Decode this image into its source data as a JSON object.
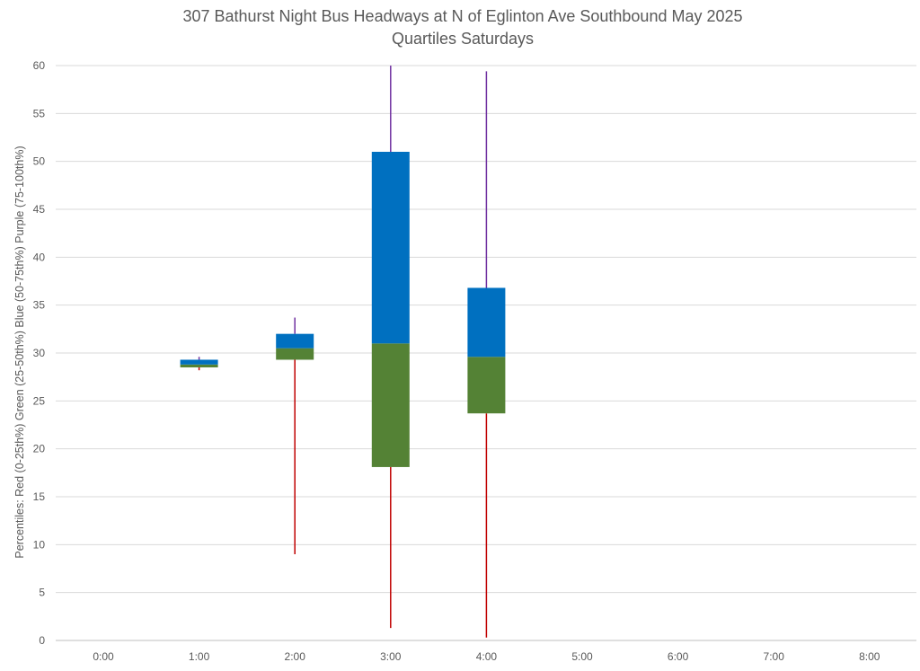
{
  "chart_data": {
    "type": "box",
    "title": "307 Bathurst Night Bus Headways at N of Eglinton Ave Southbound May 2025",
    "subtitle": "Quartiles Saturdays",
    "ylabel": "Percentiles:  Red (0-25th%)  Green (25-50th%)  Blue (50-75th%)  Purple (75-100th%)",
    "xlabel": "",
    "categories": [
      "0:00",
      "1:00",
      "2:00",
      "3:00",
      "4:00",
      "5:00",
      "6:00",
      "7:00",
      "8:00"
    ],
    "ylim": [
      0,
      60
    ],
    "yticks": [
      0,
      5,
      10,
      15,
      20,
      25,
      30,
      35,
      40,
      45,
      50,
      55,
      60
    ],
    "grid": true,
    "legend": "none",
    "colors": {
      "min_to_q1": "#c00000",
      "q1_to_median": "#548235",
      "median_to_q3": "#0070c0",
      "q3_to_max": "#7030a0"
    },
    "boxes": [
      {
        "category": "1:00",
        "min": 28.2,
        "q1": 28.5,
        "median": 28.8,
        "q3": 29.3,
        "max": 29.6
      },
      {
        "category": "2:00",
        "min": 9.0,
        "q1": 29.3,
        "median": 30.5,
        "q3": 32.0,
        "max": 33.7
      },
      {
        "category": "3:00",
        "min": 1.3,
        "q1": 18.1,
        "median": 31.0,
        "q3": 51.0,
        "max": 60.0
      },
      {
        "category": "4:00",
        "min": 0.3,
        "q1": 23.7,
        "median": 29.6,
        "q3": 36.8,
        "max": 59.4
      }
    ]
  }
}
